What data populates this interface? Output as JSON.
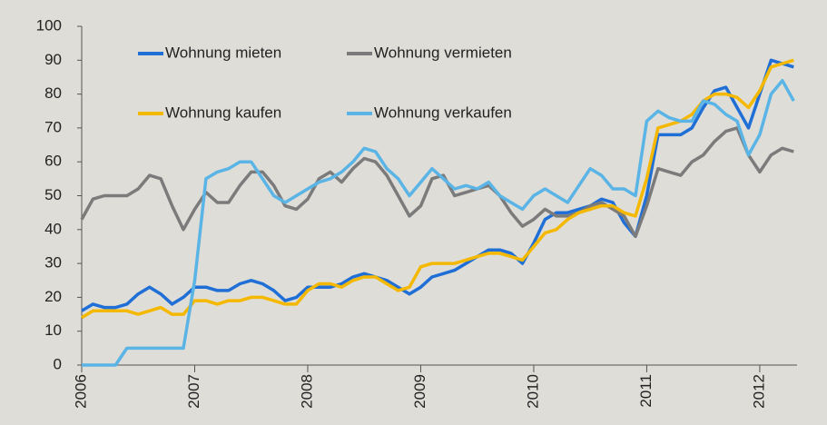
{
  "chart_data": {
    "type": "line",
    "x": [
      2006.0,
      2006.1,
      2006.2,
      2006.3,
      2006.4,
      2006.5,
      2006.6,
      2006.7,
      2006.8,
      2006.9,
      2007.0,
      2007.1,
      2007.2,
      2007.3,
      2007.4,
      2007.5,
      2007.6,
      2007.7,
      2007.8,
      2007.9,
      2008.0,
      2008.1,
      2008.2,
      2008.3,
      2008.4,
      2008.5,
      2008.6,
      2008.7,
      2008.8,
      2008.9,
      2009.0,
      2009.1,
      2009.2,
      2009.3,
      2009.4,
      2009.5,
      2009.6,
      2009.7,
      2009.8,
      2009.9,
      2010.0,
      2010.1,
      2010.2,
      2010.3,
      2010.4,
      2010.5,
      2010.6,
      2010.7,
      2010.8,
      2010.9,
      2011.0,
      2011.1,
      2011.2,
      2011.3,
      2011.4,
      2011.5,
      2011.6,
      2011.7,
      2011.8,
      2011.9,
      2012.0,
      2012.1,
      2012.2,
      2012.3
    ],
    "series": [
      {
        "name": "Wohnung mieten",
        "color": "#1f6fd6",
        "values": [
          16,
          18,
          17,
          17,
          18,
          21,
          23,
          21,
          18,
          20,
          23,
          23,
          22,
          22,
          24,
          25,
          24,
          22,
          19,
          20,
          23,
          23,
          23,
          24,
          26,
          27,
          26,
          25,
          23,
          21,
          23,
          26,
          27,
          28,
          30,
          32,
          34,
          34,
          33,
          30,
          36,
          43,
          45,
          45,
          46,
          47,
          49,
          48,
          42,
          38,
          50,
          68,
          68,
          68,
          70,
          76,
          81,
          82,
          76,
          70,
          80,
          90,
          89,
          88
        ]
      },
      {
        "name": "Wohnung vermieten",
        "color": "#7b7b7b",
        "values": [
          43,
          49,
          50,
          50,
          50,
          52,
          56,
          55,
          47,
          40,
          46,
          51,
          48,
          48,
          53,
          57,
          57,
          53,
          47,
          46,
          49,
          55,
          57,
          54,
          58,
          61,
          60,
          56,
          50,
          44,
          47,
          55,
          56,
          50,
          51,
          52,
          53,
          50,
          45,
          41,
          43,
          46,
          44,
          44,
          45,
          47,
          48,
          46,
          44,
          38,
          47,
          58,
          57,
          56,
          60,
          62,
          66,
          69,
          70,
          62,
          57,
          62,
          64,
          63
        ]
      },
      {
        "name": "Wohnung kaufen",
        "color": "#f5b800",
        "values": [
          14,
          16,
          16,
          16,
          16,
          15,
          16,
          17,
          15,
          15,
          19,
          19,
          18,
          19,
          19,
          20,
          20,
          19,
          18,
          18,
          22,
          24,
          24,
          23,
          25,
          26,
          26,
          24,
          22,
          23,
          29,
          30,
          30,
          30,
          31,
          32,
          33,
          33,
          32,
          31,
          35,
          39,
          40,
          43,
          45,
          46,
          47,
          47,
          45,
          44,
          55,
          70,
          71,
          72,
          74,
          78,
          80,
          80,
          79,
          76,
          81,
          88,
          89,
          90
        ]
      },
      {
        "name": "Wohnung verkaufen",
        "color": "#5ab4e6",
        "values": [
          0,
          0,
          0,
          0,
          5,
          5,
          5,
          5,
          5,
          5,
          25,
          55,
          57,
          58,
          60,
          60,
          55,
          50,
          48,
          50,
          52,
          54,
          55,
          57,
          60,
          64,
          63,
          58,
          55,
          50,
          54,
          58,
          55,
          52,
          53,
          52,
          54,
          50,
          48,
          46,
          50,
          52,
          50,
          48,
          53,
          58,
          56,
          52,
          52,
          50,
          72,
          75,
          73,
          72,
          72,
          78,
          77,
          74,
          72,
          62,
          68,
          80,
          84,
          78
        ]
      }
    ],
    "xlim": [
      2006,
      2012.33
    ],
    "xticks": [
      2006,
      2007,
      2008,
      2009,
      2010,
      2011,
      2012
    ],
    "ylim": [
      0,
      100
    ],
    "yticks": [
      0,
      10,
      20,
      30,
      40,
      50,
      60,
      70,
      80,
      90,
      100
    ]
  }
}
